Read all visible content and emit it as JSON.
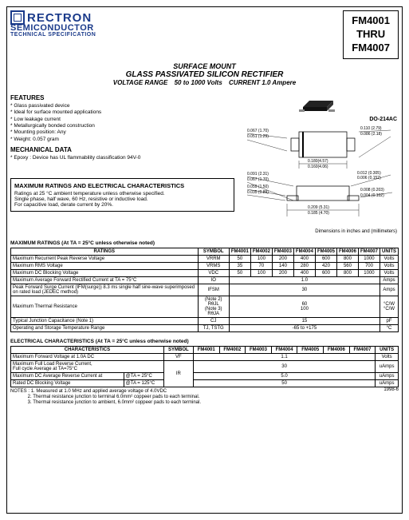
{
  "logo": {
    "brand": "RECTRON",
    "line2": "SEMICONDUCTOR",
    "line3": "TECHNICAL SPECIFICATION"
  },
  "partBox": {
    "l1": "FM4001",
    "l2": "THRU",
    "l3": "FM4007"
  },
  "titles": {
    "t1": "SURFACE MOUNT",
    "t2": "GLASS PASSIVATED SILICON RECTIFIER",
    "t3a": "VOLTAGE RANGE",
    "t3b": "50 to 1000 Volts",
    "t3c": "CURRENT 1.0 Ampere"
  },
  "features": {
    "head": "FEATURES",
    "items": [
      "Glass passivated device",
      "Ideal for surface mounted applications",
      "Low leakage current",
      "Metallurgically bonded construction",
      "Mounting position: Any",
      "Weight: 0.057 gram"
    ]
  },
  "mech": {
    "head": "MECHANICAL DATA",
    "items": [
      "Epoxy : Device has UL flammability classification 94V-0"
    ]
  },
  "ratingsBox": {
    "title": "MAXIMUM RATINGS AND ELECTRICAL CHARACTERISTICS",
    "l1": "Ratings at 25 °C ambient temperature unless otherwise specified.",
    "l2": "Single phase, half wave, 60 Hz, resistive or inductive load.",
    "l3": "For capacitive load, derate current by 20%."
  },
  "pkgLabel": "DO-214AC",
  "dimNote": "Dimensions in inches and (millimeters)",
  "dims": {
    "top": {
      "a": "0.067 (1.70)",
      "b": "0.051 (1.29)",
      "c": "0.110 (2.79)",
      "d": "0.086 (2.18)",
      "e": "0.180(4.57)",
      "f": "0.160(4.06)"
    },
    "side": {
      "a": "0.091 (2.31)",
      "b": "0.067 (1.70)",
      "c": "0.059 (1.50)",
      "d": "0.035 (0.89)",
      "e": "0.012 (0.305)",
      "f": "0.006 (0.152)",
      "g": "0.008 (0.203)",
      "h": "0.004 (0.102)",
      "i": "0.209 (5.31)",
      "j": "0.185 (4.70)"
    }
  },
  "maxRatings": {
    "title": "MAXIMUM RATINGS (At TA = 25°C unless otherwise noted)",
    "headers": {
      "r": "RATINGS",
      "sym": "SYMBOL",
      "p1": "FM4001",
      "p2": "FM4002",
      "p3": "FM4003",
      "p4": "FM4004",
      "p5": "FM4005",
      "p6": "FM4006",
      "p7": "FM4007",
      "u": "UNITS"
    },
    "rows": [
      {
        "r": "Maximum Recurrent Peak Reverse Voltage",
        "sym": "VRRM",
        "v": [
          "50",
          "100",
          "200",
          "400",
          "600",
          "800",
          "1000"
        ],
        "u": "Volts"
      },
      {
        "r": "Maximum RMS Voltage",
        "sym": "VRMS",
        "v": [
          "35",
          "70",
          "140",
          "280",
          "420",
          "560",
          "700"
        ],
        "u": "Volts"
      },
      {
        "r": "Maximum DC Blocking Voltage",
        "sym": "VDC",
        "v": [
          "50",
          "100",
          "200",
          "400",
          "600",
          "800",
          "1000"
        ],
        "u": "Volts"
      },
      {
        "r": "Maximum Average Forward Rectified Current at TA = 75°C",
        "sym": "IO",
        "span": "1.0",
        "u": "Amps"
      },
      {
        "r": "Peak Forward Surge Current (IFM(surge)) 8.3 ms single half sine-wave superimposed on rated load (JEDEC method)",
        "sym": "IFSM",
        "span": "30",
        "u": "Amps"
      },
      {
        "r": "Maximum Thermal Resistance",
        "sym2": "(Note 2) RθJL\n(Note 3) RθJA",
        "span2": "60\n100",
        "u": "°C/W\n°C/W"
      },
      {
        "r": "Typical Junction Capacitance (Note 1)",
        "sym": "CJ",
        "span": "15",
        "u": "pF"
      },
      {
        "r": "Operating and Storage Temperature Range",
        "sym": "TJ, TSTG",
        "span": "-65 to +175",
        "u": "°C"
      }
    ]
  },
  "elec": {
    "title": "ELECTRICAL CHARACTERISTICS (At TA = 25°C unless otherwise noted)",
    "headers": {
      "c": "CHARACTERISTICS",
      "sym": "SYMBOL",
      "p1": "FM4001",
      "p2": "FM4002",
      "p3": "FM4003",
      "p4": "FM4004",
      "p5": "FM4005",
      "p6": "FM4006",
      "p7": "FM4007",
      "u": "UNITS"
    },
    "rows": [
      {
        "c": "Maximum Forward Voltage at 1.0A DC",
        "sym": "VF",
        "span": "1.1",
        "u": "Volts"
      },
      {
        "c": "Maximum Full Load Reverse Current,\nFull cycle Average at TA=75°C",
        "sym": "IR",
        "span": "30",
        "u": "uAmps",
        "rowspan": 3
      },
      {
        "c": "Maximum DC Average Reverse Current at",
        "c2": "@TA = 25°C",
        "span": "5.0",
        "u": "uAmps"
      },
      {
        "c": "Rated DC Blocking Voltage",
        "c2": "@TA = 125°C",
        "span": "50",
        "u": "uAmps"
      }
    ]
  },
  "notes": {
    "head": "NOTES :",
    "n1": "1. Measured at 1.0 MHz and applied average voltage of 4.0VDC",
    "n2": "2. Thermal resistance junction to terminal 6.0mm² coppeer pads to each terminal.",
    "n3": "3. Thermal resistance junction to ambient, 6.0mm² coppeer pads to each terminal.",
    "date": "1998-6"
  }
}
